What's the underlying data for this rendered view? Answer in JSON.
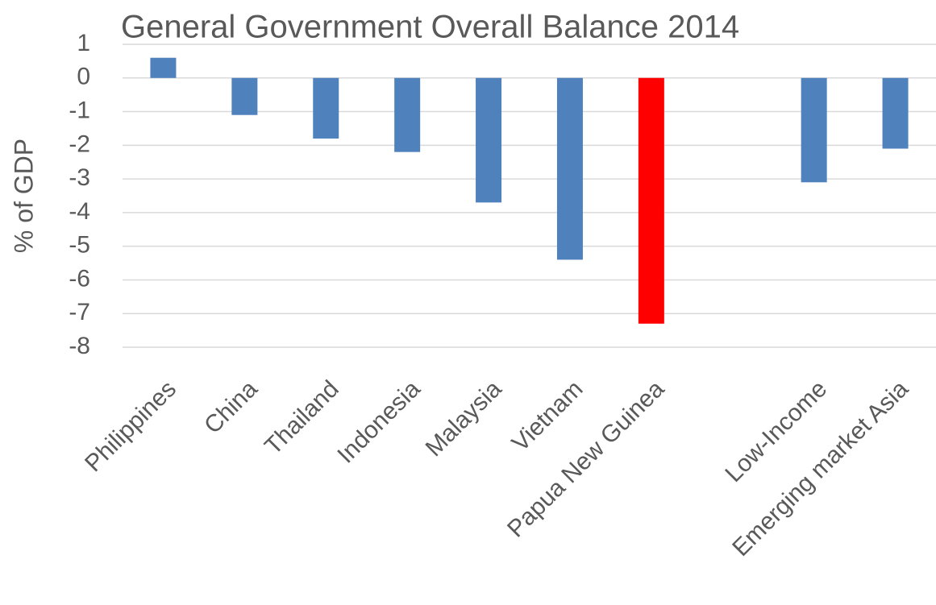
{
  "chart_data": {
    "type": "bar",
    "title": "General Government Overall Balance 2014",
    "y_label": "% of GDP",
    "categories": [
      "Philippines",
      "China",
      "Thailand",
      "Indonesia",
      "Malaysia",
      "Vietnam",
      "Papua New Guinea",
      null,
      "Low-Income",
      "Emerging market Asia"
    ],
    "values": [
      0.6,
      -1.1,
      -1.8,
      -2.2,
      -3.7,
      -5.4,
      -7.3,
      null,
      -3.1,
      -2.1
    ],
    "colors": [
      "#4f81bd",
      "#4f81bd",
      "#4f81bd",
      "#4f81bd",
      "#4f81bd",
      "#4f81bd",
      "#ff0000",
      null,
      "#4f81bd",
      "#4f81bd"
    ],
    "ylim": [
      -8,
      1
    ],
    "yticks": [
      -8,
      -7,
      -6,
      -5,
      -4,
      -3,
      -2,
      -1,
      0,
      1
    ],
    "grid": true
  }
}
